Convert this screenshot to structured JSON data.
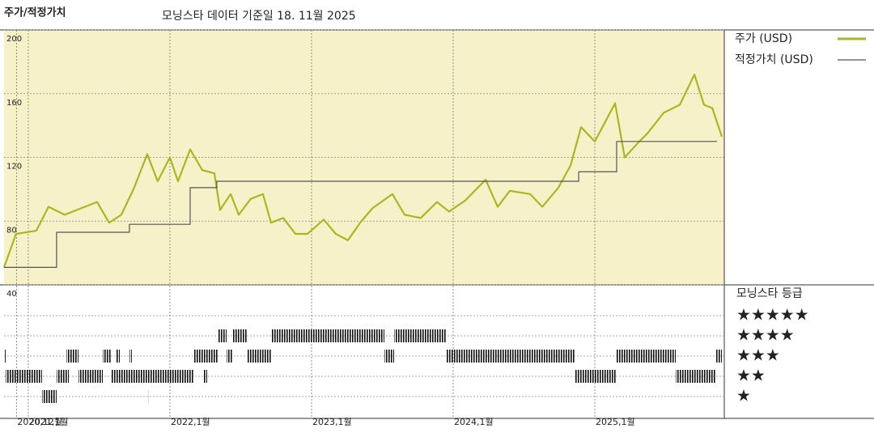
{
  "chart_data": {
    "type": "line",
    "title": "주가/적정가치",
    "subtitle": "모닝스타 데이터 기준일 18. 11월 2025",
    "xlim": [
      2020.829,
      2025.914
    ],
    "xticks": [
      {
        "value": 2020.917,
        "label": "2020,12월"
      },
      {
        "value": 2021,
        "label": "2021,1월"
      },
      {
        "value": 2022,
        "label": "2022,1월"
      },
      {
        "value": 2023,
        "label": "2023,1월"
      },
      {
        "value": 2024,
        "label": "2024,1월"
      },
      {
        "value": 2025,
        "label": "2025,1월"
      }
    ],
    "ylim": [
      40,
      200
    ],
    "yticks": [
      40,
      80,
      120,
      160,
      200
    ],
    "grid": true,
    "background": "#f6f1c9",
    "series": [
      {
        "name": "주가 (USD)",
        "color": "#a9b821",
        "drawstyle": "line",
        "x": [
          2020.829,
          2020.914,
          2021.057,
          2021.143,
          2021.257,
          2021.371,
          2021.486,
          2021.571,
          2021.657,
          2021.743,
          2021.84,
          2021.914,
          2022.0,
          2022.057,
          2022.143,
          2022.229,
          2022.314,
          2022.354,
          2022.429,
          2022.486,
          2022.571,
          2022.657,
          2022.714,
          2022.8,
          2022.886,
          2022.971,
          2023.086,
          2023.171,
          2023.257,
          2023.343,
          2023.429,
          2023.571,
          2023.657,
          2023.771,
          2023.886,
          2023.971,
          2024.086,
          2024.229,
          2024.314,
          2024.4,
          2024.543,
          2024.629,
          2024.743,
          2024.829,
          2024.903,
          2025.0,
          2025.143,
          2025.211,
          2025.314,
          2025.371,
          2025.486,
          2025.6,
          2025.703,
          2025.771,
          2025.829,
          2025.897
        ],
        "values": [
          51,
          72,
          74,
          89,
          84,
          88,
          92,
          79,
          84,
          100,
          122,
          105,
          120,
          105,
          125,
          112,
          110,
          87,
          97,
          84,
          94,
          97,
          79,
          82,
          72,
          72,
          81,
          72,
          68,
          79,
          88,
          97,
          84,
          82,
          92,
          86,
          93,
          106,
          89,
          99,
          97,
          89,
          101,
          115,
          139,
          130,
          154,
          120,
          130,
          135,
          148,
          153,
          172,
          153,
          151,
          133
        ]
      },
      {
        "name": "적정가치 (USD)",
        "color": "#555555",
        "drawstyle": "steps-post",
        "x": [
          2020.829,
          2021.2,
          2021.714,
          2022.143,
          2022.331,
          2024.886,
          2025.154,
          2025.863
        ],
        "values": [
          51,
          73,
          78,
          101,
          105,
          111,
          130,
          130
        ]
      }
    ],
    "ratings": {
      "title": "모닝스타 등급",
      "levels": [
        5,
        4,
        3,
        2,
        1
      ],
      "labels": [
        "★★★★★",
        "★★★★",
        "★★★",
        "★★",
        "★"
      ],
      "periods": [
        {
          "start": 2021.097,
          "end": 2021.2,
          "rating": 1
        },
        {
          "start": 2021.84,
          "end": 2021.846,
          "rating": 1
        },
        {
          "start": 2020.84,
          "end": 2021.097,
          "rating": 2
        },
        {
          "start": 2021.2,
          "end": 2021.286,
          "rating": 2
        },
        {
          "start": 2021.354,
          "end": 2021.526,
          "rating": 2
        },
        {
          "start": 2021.583,
          "end": 2022.171,
          "rating": 2
        },
        {
          "start": 2022.24,
          "end": 2022.263,
          "rating": 2
        },
        {
          "start": 2024.857,
          "end": 2025.154,
          "rating": 2
        },
        {
          "start": 2025.571,
          "end": 2025.857,
          "rating": 2
        },
        {
          "start": 2020.829,
          "end": 2020.84,
          "rating": 3
        },
        {
          "start": 2021.269,
          "end": 2021.354,
          "rating": 3
        },
        {
          "start": 2021.526,
          "end": 2021.583,
          "rating": 3
        },
        {
          "start": 2021.617,
          "end": 2021.646,
          "rating": 3
        },
        {
          "start": 2021.714,
          "end": 2021.731,
          "rating": 3
        },
        {
          "start": 2022.171,
          "end": 2022.343,
          "rating": 3
        },
        {
          "start": 2022.4,
          "end": 2022.44,
          "rating": 3
        },
        {
          "start": 2022.543,
          "end": 2022.714,
          "rating": 3
        },
        {
          "start": 2023.514,
          "end": 2023.583,
          "rating": 3
        },
        {
          "start": 2023.954,
          "end": 2024.857,
          "rating": 3
        },
        {
          "start": 2025.154,
          "end": 2025.571,
          "rating": 3
        },
        {
          "start": 2025.857,
          "end": 2025.897,
          "rating": 3
        },
        {
          "start": 2022.343,
          "end": 2022.4,
          "rating": 4
        },
        {
          "start": 2022.44,
          "end": 2022.543,
          "rating": 4
        },
        {
          "start": 2022.714,
          "end": 2023.514,
          "rating": 4
        },
        {
          "start": 2023.583,
          "end": 2023.954,
          "rating": 4
        }
      ]
    }
  }
}
